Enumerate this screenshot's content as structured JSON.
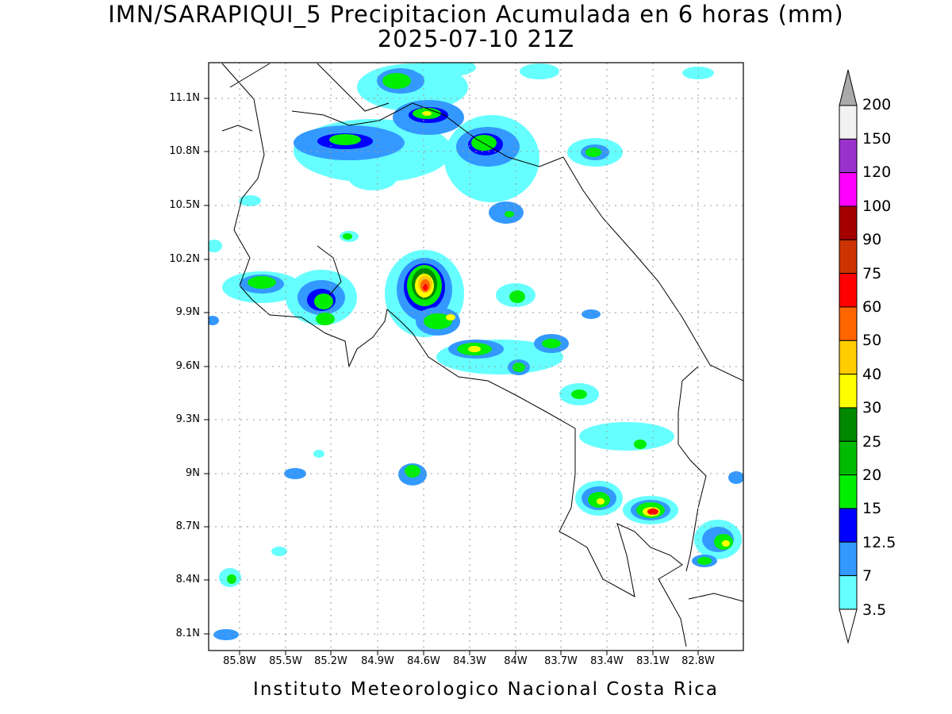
{
  "title": {
    "line1": "IMN/SARAPIQUI_5 Precipitacion Acumulada en 6 horas (mm)",
    "line2": "2025-07-10 21Z"
  },
  "footer": "Instituto Meteorologico Nacional Costa Rica",
  "axes": {
    "lat_ticks": [
      "11.1N",
      "10.8N",
      "10.5N",
      "10.2N",
      "9.9N",
      "9.6N",
      "9.3N",
      "9N",
      "8.7N",
      "8.4N",
      "8.1N"
    ],
    "lon_ticks": [
      "85.8W",
      "85.5W",
      "85.2W",
      "84.9W",
      "84.6W",
      "84.3W",
      "84W",
      "83.7W",
      "83.4W",
      "83.1W",
      "82.8W"
    ],
    "lat_range": [
      8.0,
      11.3
    ],
    "lon_range": [
      -86.0,
      -82.6
    ]
  },
  "colorbar": {
    "labels": [
      "200",
      "150",
      "120",
      "100",
      "90",
      "75",
      "60",
      "50",
      "40",
      "30",
      "25",
      "20",
      "15",
      "12.5",
      "7",
      "3.5"
    ],
    "colors": [
      "#f2f2f2",
      "#9932cc",
      "#ff00ff",
      "#a50000",
      "#cc3300",
      "#ff0000",
      "#ff6600",
      "#ffcc00",
      "#ffff00",
      "#008800",
      "#00bb00",
      "#00ee00",
      "#0000ff",
      "#3399ff",
      "#66ffff"
    ],
    "over_color": "#aaaaaa"
  }
}
